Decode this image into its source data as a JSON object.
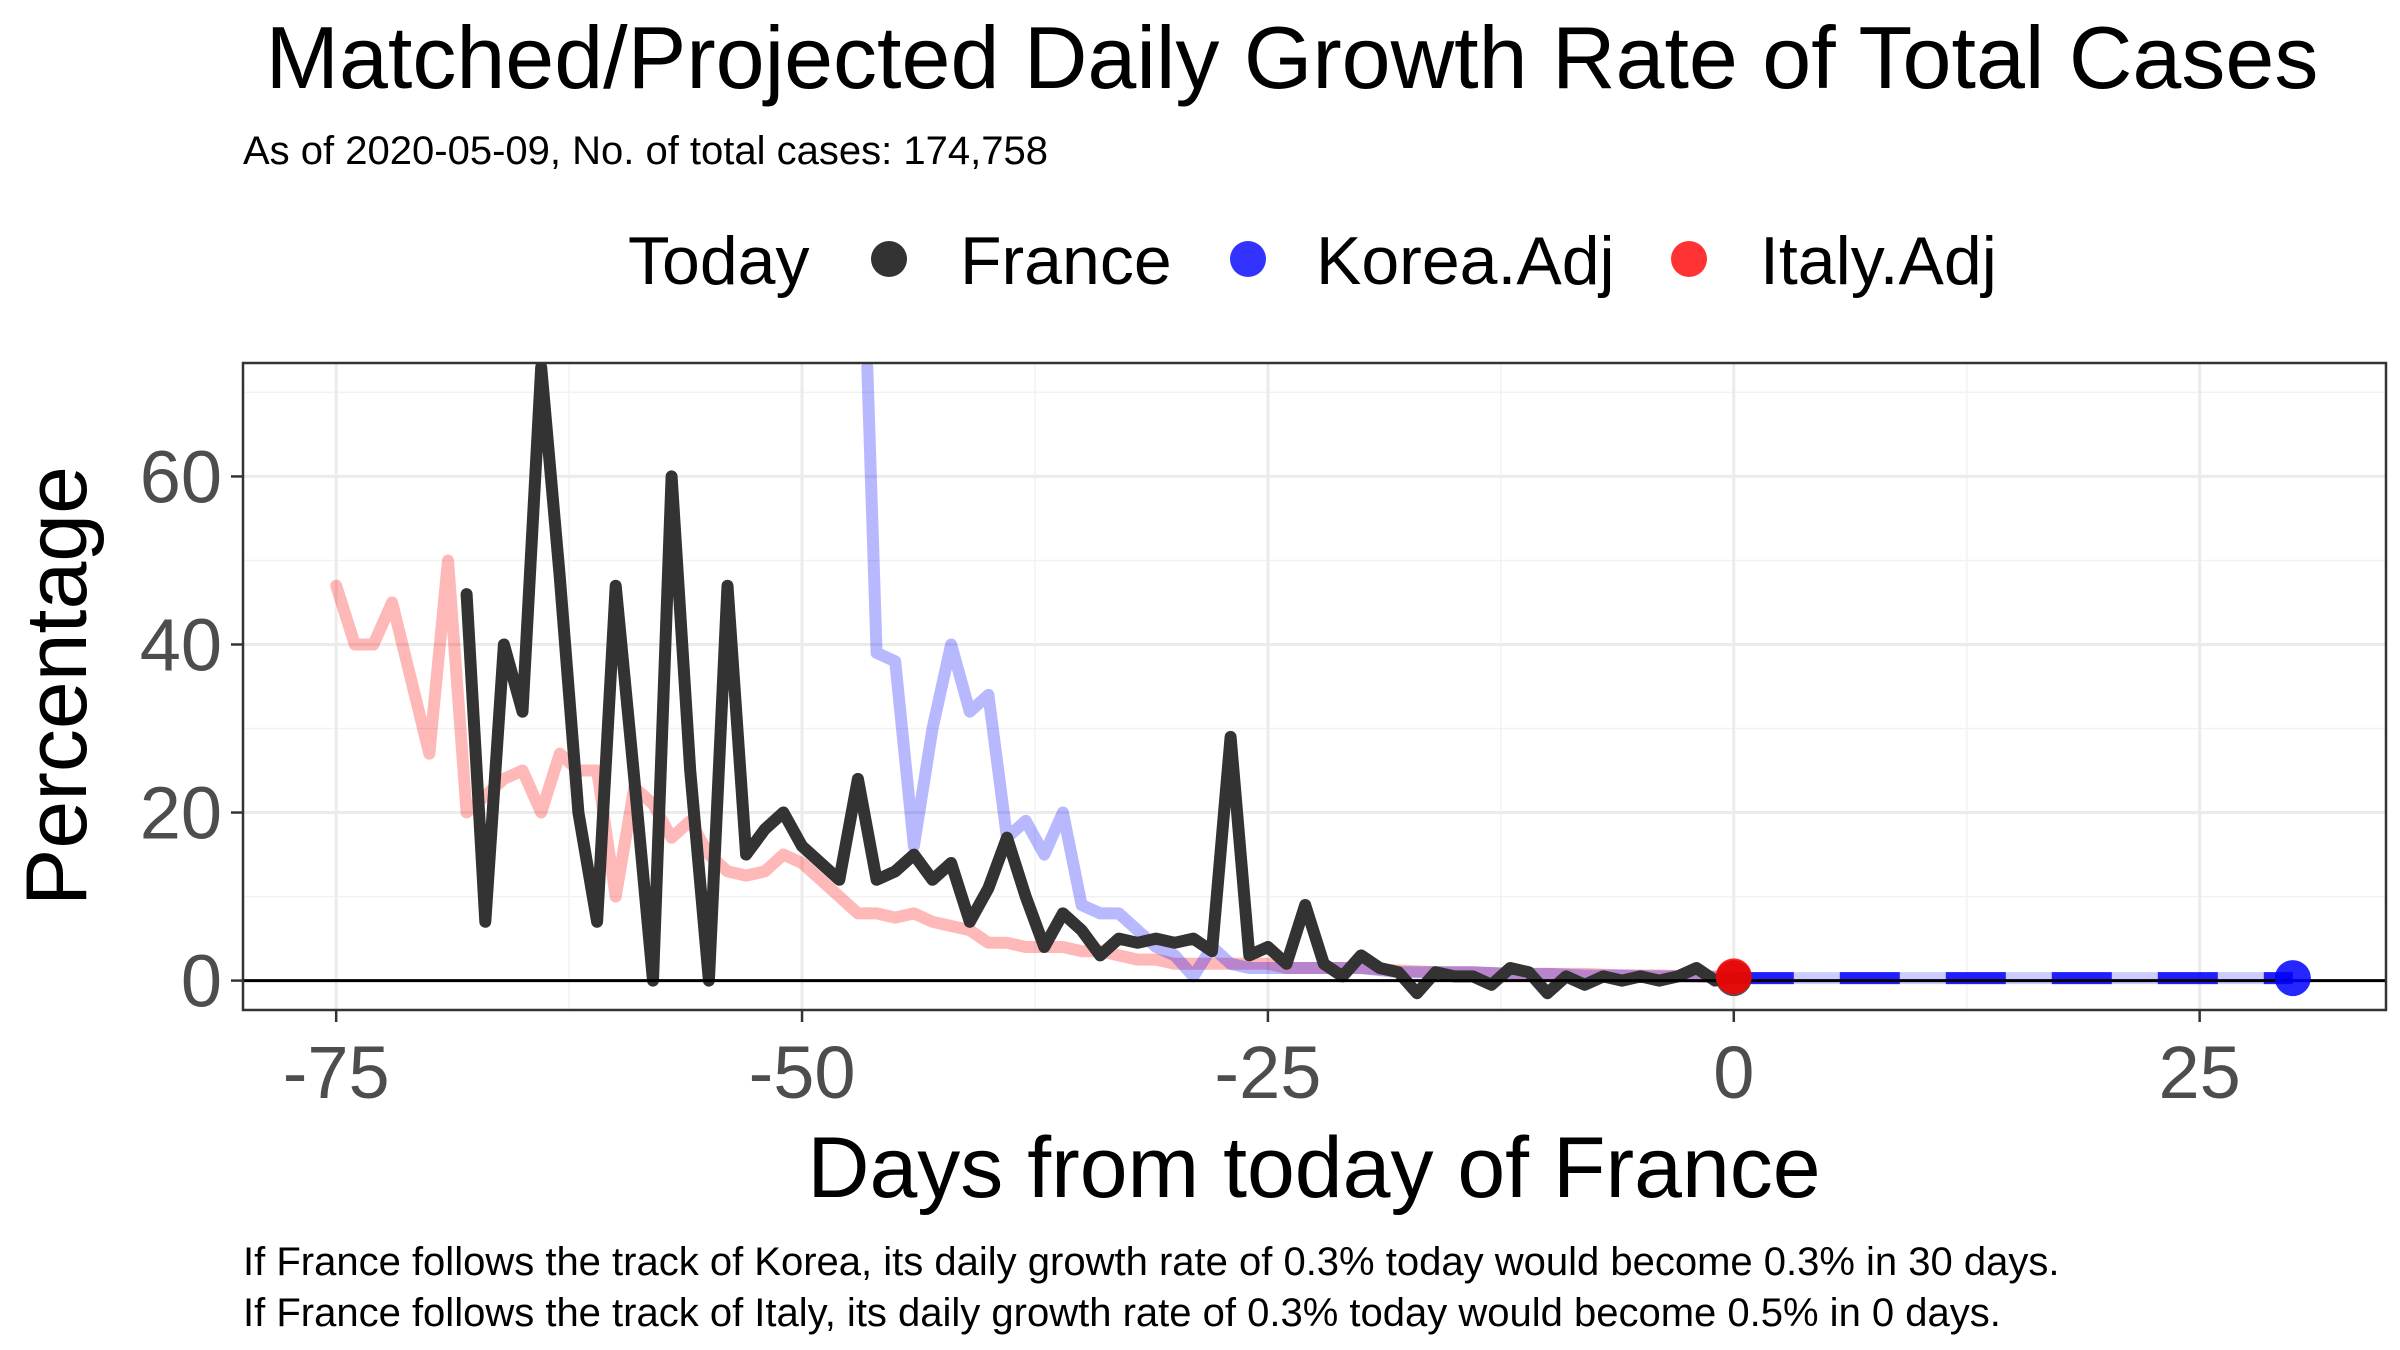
{
  "chart_data": {
    "type": "line",
    "title": "Matched/Projected Daily Growth Rate of Total Cases",
    "subtitle": "As of 2020-05-09, No. of total cases: 174,758",
    "xlabel": "Days from today of France",
    "ylabel": "Percentage",
    "xlim": [
      -80,
      35
    ],
    "ylim": [
      -3.5,
      73.5
    ],
    "x_ticks": [
      -75,
      -50,
      -25,
      0,
      25
    ],
    "x_tick_labels": [
      "-75",
      "-50",
      "-25",
      "0",
      "25"
    ],
    "y_ticks": [
      0,
      20,
      40,
      60
    ],
    "y_tick_labels": [
      "0",
      "20",
      "40",
      "60"
    ],
    "grid": true,
    "hline_y": 0,
    "legend": {
      "title": "Today",
      "position": "top",
      "entries": [
        "France",
        "Korea.Adj",
        "Italy.Adj"
      ]
    },
    "series": [
      {
        "name": "France",
        "color": "#333333",
        "style": "solid",
        "x": [
          -68,
          -67,
          -66,
          -65,
          -64,
          -63,
          -62,
          -61,
          -60,
          -59,
          -58,
          -57,
          -56,
          -55,
          -54,
          -53,
          -52,
          -51,
          -50,
          -49,
          -48,
          -47,
          -46,
          -45,
          -44,
          -43,
          -42,
          -41,
          -40,
          -39,
          -38,
          -37,
          -36,
          -35,
          -34,
          -33,
          -32,
          -31,
          -30,
          -29,
          -28,
          -27,
          -26,
          -25,
          -24,
          -23,
          -22,
          -21,
          -20,
          -19,
          -18,
          -17,
          -16,
          -15,
          -14,
          -13,
          -12,
          -11,
          -10,
          -9,
          -8,
          -7,
          -6,
          -5,
          -4,
          -3,
          -2,
          -1,
          0
        ],
        "y": [
          46,
          7,
          40,
          32,
          73,
          48,
          20,
          7,
          47,
          24,
          0,
          60,
          25,
          0,
          47,
          15,
          18,
          20,
          16,
          14,
          12,
          24,
          12,
          13,
          15,
          12,
          14,
          7,
          11,
          17,
          10,
          4,
          8,
          6,
          3,
          5,
          4.5,
          5,
          4.5,
          5,
          3.5,
          29,
          3,
          4,
          2,
          9,
          2,
          0.5,
          3,
          1.5,
          1,
          -1.5,
          1,
          0.5,
          0.5,
          -0.5,
          1.5,
          1,
          -1.5,
          0.5,
          -0.5,
          0.5,
          0,
          0.5,
          0,
          0.5,
          1.5,
          0,
          0.3
        ]
      },
      {
        "name": "Korea.Adj",
        "color": "#0000ff",
        "style": "faded-then-dashed",
        "x": [
          -46.5,
          -46,
          -45,
          -44,
          -43,
          -42,
          -41,
          -40,
          -39,
          -38,
          -37,
          -36,
          -35,
          -34,
          -33,
          -32,
          -31,
          -30,
          -29,
          -28,
          -27,
          -26,
          -25,
          -24,
          -23,
          -22,
          -21,
          -20,
          -18,
          -16,
          -14,
          -12,
          -10,
          -8,
          -6,
          -4,
          -2,
          0,
          5,
          10,
          15,
          20,
          25,
          30
        ],
        "y": [
          73,
          39,
          38,
          16,
          30,
          40,
          32,
          34,
          17,
          19,
          15,
          20,
          9,
          8,
          8,
          6,
          4,
          3,
          0.5,
          4,
          2,
          1.5,
          1.5,
          1.5,
          1.5,
          1.5,
          1.5,
          1.5,
          1,
          1,
          1,
          0.8,
          0.8,
          0.6,
          0.6,
          0.5,
          0.5,
          0.3,
          0.3,
          0.3,
          0.3,
          0.3,
          0.3,
          0.3
        ]
      },
      {
        "name": "Italy.Adj",
        "color": "#ff0000",
        "style": "faded",
        "x": [
          -75,
          -74,
          -73,
          -72,
          -71,
          -70,
          -69,
          -68,
          -67,
          -66,
          -65,
          -64,
          -63,
          -62,
          -61,
          -60,
          -59,
          -58,
          -57,
          -56,
          -55,
          -54,
          -53,
          -52,
          -51,
          -50,
          -49,
          -48,
          -47,
          -46,
          -45,
          -44,
          -43,
          -42,
          -41,
          -40,
          -39,
          -38,
          -37,
          -36,
          -35,
          -34,
          -33,
          -32,
          -31,
          -30,
          -29,
          -28,
          -27,
          -26,
          -25,
          -24,
          -23,
          -22,
          -21,
          -20,
          -18,
          -16,
          -14,
          -12,
          -10,
          -8,
          -6,
          -4,
          -2,
          0
        ],
        "y": [
          47,
          40,
          40,
          45,
          36,
          27,
          50,
          20,
          22,
          24,
          25,
          20,
          27,
          25,
          25,
          10,
          23,
          21,
          17,
          19,
          15,
          13,
          12.5,
          13,
          15,
          14,
          12,
          10,
          8,
          8,
          7.5,
          8,
          7,
          6.5,
          6,
          4.5,
          4.5,
          4,
          4,
          4,
          3.5,
          3.5,
          3,
          2.5,
          2.5,
          2,
          2,
          2,
          2,
          2,
          2,
          1.5,
          1.5,
          1.5,
          1.5,
          1.5,
          1.2,
          1,
          1,
          0.8,
          0.8,
          0.8,
          0.6,
          0.6,
          0.5,
          0.5
        ]
      }
    ],
    "today_points": [
      {
        "series": "France",
        "x": 0,
        "y": 0.3,
        "color": "#333333"
      },
      {
        "series": "Italy.Adj",
        "x": 0,
        "y": 0.5,
        "color": "#ff0000"
      },
      {
        "series": "Korea.Adj",
        "x": 30,
        "y": 0.3,
        "color": "#0000ff"
      }
    ],
    "annotations": [
      "If France follows the track of Korea, its daily growth rate of 0.3% today would become 0.3% in 30 days.",
      "If France follows the track of Italy, its daily growth rate of 0.3% today would become 0.5% in 0 days."
    ]
  }
}
